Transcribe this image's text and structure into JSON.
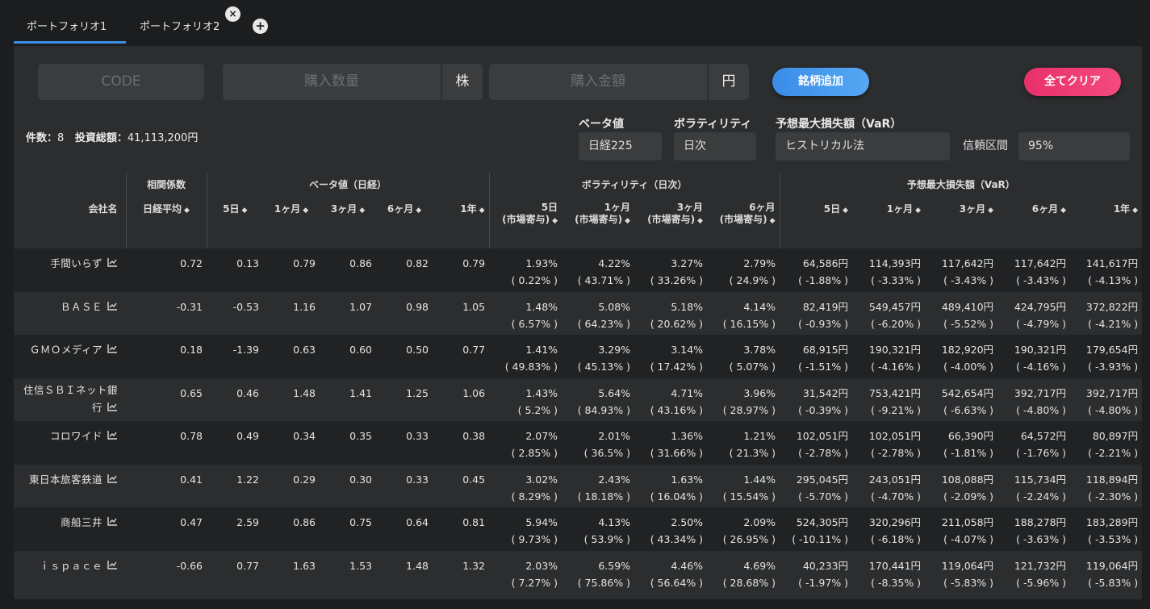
{
  "tabs": [
    {
      "label": "ポートフォリオ1"
    },
    {
      "label": "ポートフォリオ2"
    }
  ],
  "input_row": {
    "code_placeholder": "CODE",
    "quantity_placeholder": "購入数量",
    "quantity_unit": "株",
    "amount_placeholder": "購入金額",
    "amount_unit": "円",
    "add_button": "銘柄追加",
    "clear_button": "全てクリア"
  },
  "summary": {
    "count_label": "件数：",
    "count": "8",
    "total_label": "投資総額：",
    "total": "41,113,200円"
  },
  "selectors": {
    "beta_label": "ベータ値",
    "beta_value": "日経225",
    "vol_label": "ボラティリティ",
    "vol_value": "日次",
    "var_label": "予想最大損失額（VaR）",
    "var_method": "ヒストリカル法",
    "conf_label": "信頼区間",
    "conf_value": "95%"
  },
  "table": {
    "group_headers": {
      "corr": "相関係数",
      "beta": "ベータ値（日経）",
      "vol": "ボラティリティ（日次）",
      "var": "予想最大損失額（VaR）"
    },
    "sub_headers": {
      "company": "会社名",
      "nikkei_avg": "日経平均",
      "d5": "5日",
      "m1": "1ヶ月",
      "m3": "3ヶ月",
      "m6": "6ヶ月",
      "y1": "1年",
      "contrib": "(市場寄与)"
    },
    "rows": [
      {
        "name": "手間いらず",
        "corr": "0.72",
        "b": [
          "0.13",
          "0.79",
          "0.86",
          "0.82",
          "0.79"
        ],
        "v": [
          "1.93%",
          "4.22%",
          "3.27%",
          "2.79%"
        ],
        "vc": [
          "( 0.22% )",
          "( 43.71% )",
          "( 33.26% )",
          "( 24.9% )"
        ],
        "r": [
          "64,586円",
          "114,393円",
          "117,642円",
          "117,642円",
          "141,617円"
        ],
        "rp": [
          "( -1.88% )",
          "( -3.33% )",
          "( -3.43% )",
          "( -3.43% )",
          "( -4.13% )"
        ]
      },
      {
        "name": "ＢＡＳＥ",
        "corr": "-0.31",
        "b": [
          "-0.53",
          "1.16",
          "1.07",
          "0.98",
          "1.05"
        ],
        "v": [
          "1.48%",
          "5.08%",
          "5.18%",
          "4.14%"
        ],
        "vc": [
          "( 6.57% )",
          "( 64.23% )",
          "( 20.62% )",
          "( 16.15% )"
        ],
        "r": [
          "82,419円",
          "549,457円",
          "489,410円",
          "424,795円",
          "372,822円"
        ],
        "rp": [
          "( -0.93% )",
          "( -6.20% )",
          "( -5.52% )",
          "( -4.79% )",
          "( -4.21% )"
        ]
      },
      {
        "name": "ＧＭＯメディア",
        "corr": "0.18",
        "b": [
          "-1.39",
          "0.63",
          "0.60",
          "0.50",
          "0.77"
        ],
        "v": [
          "1.41%",
          "3.29%",
          "3.14%",
          "3.78%"
        ],
        "vc": [
          "( 49.83% )",
          "( 45.13% )",
          "( 17.42% )",
          "( 5.07% )"
        ],
        "r": [
          "68,915円",
          "190,321円",
          "182,920円",
          "190,321円",
          "179,654円"
        ],
        "rp": [
          "( -1.51% )",
          "( -4.16% )",
          "( -4.00% )",
          "( -4.16% )",
          "( -3.93% )"
        ]
      },
      {
        "name": "住信ＳＢＩネット銀行",
        "corr": "0.65",
        "b": [
          "0.46",
          "1.48",
          "1.41",
          "1.25",
          "1.06"
        ],
        "v": [
          "1.43%",
          "5.64%",
          "4.71%",
          "3.96%"
        ],
        "vc": [
          "( 5.2% )",
          "( 84.93% )",
          "( 43.16% )",
          "( 28.97% )"
        ],
        "r": [
          "31,542円",
          "753,421円",
          "542,654円",
          "392,717円",
          "392,717円"
        ],
        "rp": [
          "( -0.39% )",
          "( -9.21% )",
          "( -6.63% )",
          "( -4.80% )",
          "( -4.80% )"
        ]
      },
      {
        "name": "コロワイド",
        "corr": "0.78",
        "b": [
          "0.49",
          "0.34",
          "0.35",
          "0.33",
          "0.38"
        ],
        "v": [
          "2.07%",
          "2.01%",
          "1.36%",
          "1.21%"
        ],
        "vc": [
          "( 2.85% )",
          "( 36.5% )",
          "( 31.66% )",
          "( 21.3% )"
        ],
        "r": [
          "102,051円",
          "102,051円",
          "66,390円",
          "64,572円",
          "80,897円"
        ],
        "rp": [
          "( -2.78% )",
          "( -2.78% )",
          "( -1.81% )",
          "( -1.76% )",
          "( -2.21% )"
        ]
      },
      {
        "name": "東日本旅客鉄道",
        "corr": "0.41",
        "b": [
          "1.22",
          "0.29",
          "0.30",
          "0.33",
          "0.45"
        ],
        "v": [
          "3.02%",
          "2.43%",
          "1.63%",
          "1.44%"
        ],
        "vc": [
          "( 8.29% )",
          "( 18.18% )",
          "( 16.04% )",
          "( 15.54% )"
        ],
        "r": [
          "295,045円",
          "243,051円",
          "108,088円",
          "115,734円",
          "118,894円"
        ],
        "rp": [
          "( -5.70% )",
          "( -4.70% )",
          "( -2.09% )",
          "( -2.24% )",
          "( -2.30% )"
        ]
      },
      {
        "name": "商船三井",
        "corr": "0.47",
        "b": [
          "2.59",
          "0.86",
          "0.75",
          "0.64",
          "0.81"
        ],
        "v": [
          "5.94%",
          "4.13%",
          "2.50%",
          "2.09%"
        ],
        "vc": [
          "( 9.73% )",
          "( 53.9% )",
          "( 43.34% )",
          "( 26.95% )"
        ],
        "r": [
          "524,305円",
          "320,296円",
          "211,058円",
          "188,278円",
          "183,289円"
        ],
        "rp": [
          "( -10.11% )",
          "( -6.18% )",
          "( -4.07% )",
          "( -3.63% )",
          "( -3.53% )"
        ]
      },
      {
        "name": "ｉｓｐａｃｅ",
        "corr": "-0.66",
        "b": [
          "0.77",
          "1.63",
          "1.53",
          "1.48",
          "1.32"
        ],
        "v": [
          "2.03%",
          "6.59%",
          "4.46%",
          "4.69%"
        ],
        "vc": [
          "( 7.27% )",
          "( 75.86% )",
          "( 56.64% )",
          "( 28.68% )"
        ],
        "r": [
          "40,233円",
          "170,441円",
          "119,064円",
          "121,732円",
          "119,064円"
        ],
        "rp": [
          "( -1.97% )",
          "( -8.35% )",
          "( -5.83% )",
          "( -5.96% )",
          "( -5.83% )"
        ]
      }
    ]
  },
  "icons": {
    "row_icon": "line-chart-icon",
    "close_tab_icon": "close-icon",
    "add_tab_icon": "plus-icon",
    "sort_icon": "sort-icon"
  },
  "colors": {
    "accent_blue": "#3a8ce8",
    "accent_pink": "#f04078",
    "panel_bg": "#2b2d2f"
  }
}
